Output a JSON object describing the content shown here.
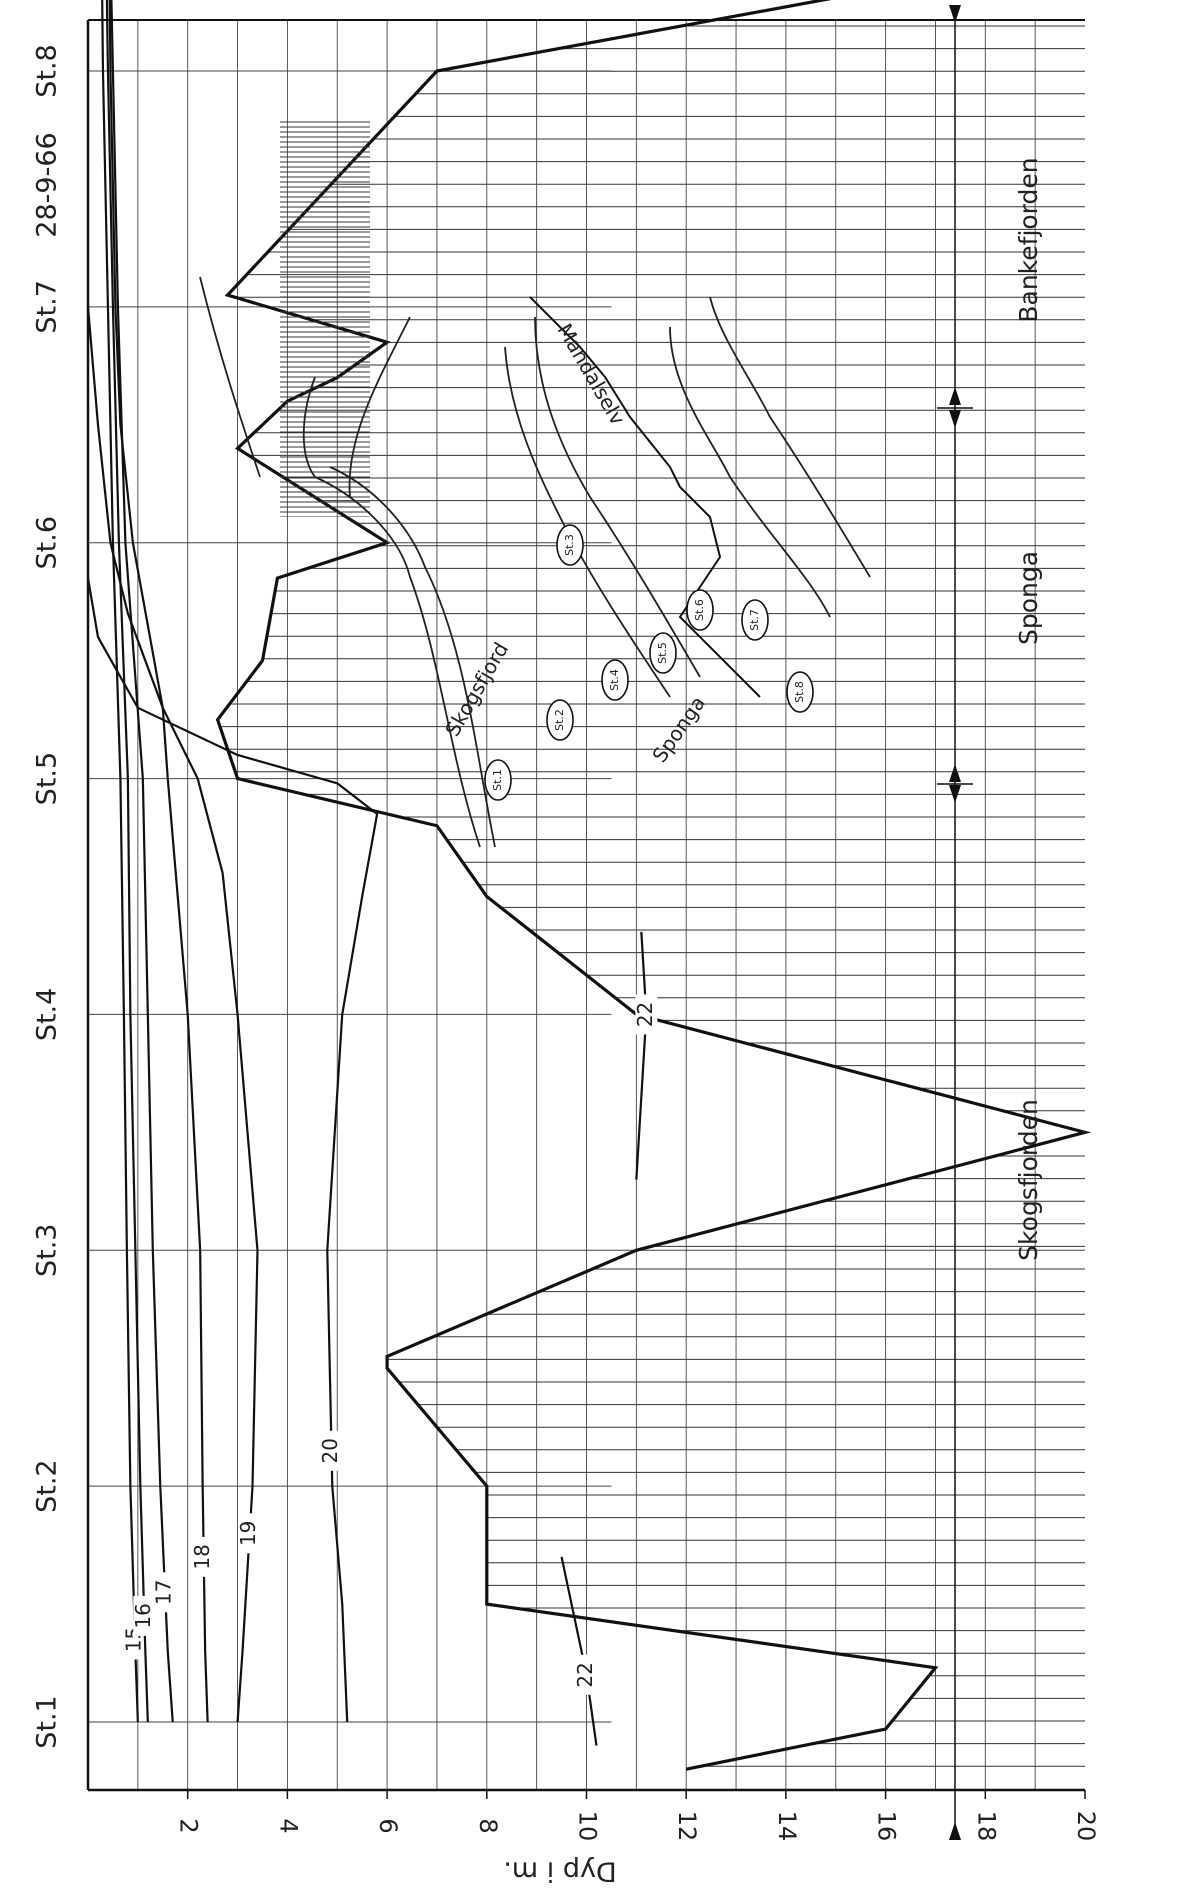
{
  "chart_data": {
    "type": "area",
    "date": "28-9-66",
    "ylabel": "Dyp i m.",
    "ylim": [
      0,
      20
    ],
    "y_ticks": [
      2,
      4,
      6,
      8,
      10,
      12,
      14,
      16,
      18,
      20
    ],
    "stations": [
      "St.1",
      "St.2",
      "St.3",
      "St.4",
      "St.5",
      "St.6",
      "St.7",
      "St.8"
    ],
    "regions": [
      {
        "name": "Skogsfjorden",
        "from": "St.1",
        "to": "St.4"
      },
      {
        "name": "Sponga",
        "from": "St.4",
        "to": "St.6"
      },
      {
        "name": "Bankefjorden",
        "from": "St.6",
        "to": "St.8"
      }
    ],
    "bottom_profile": {
      "distance": [
        -0.2,
        -0.03,
        0.23,
        0.5,
        1.0,
        1.5,
        1.55,
        2.0,
        2.5,
        3.0,
        3.5,
        3.8,
        4.0,
        4.25,
        4.5,
        4.85,
        5.0,
        5.4,
        5.6,
        5.7,
        5.85,
        6.05,
        7.0,
        7.35,
        7.55,
        7.7,
        8.0
      ],
      "depth": [
        12,
        16,
        17,
        8,
        8,
        6,
        6,
        11,
        20,
        11,
        8,
        7,
        3,
        2.6,
        3.5,
        3.8,
        6,
        3,
        4,
        5.0,
        6.0,
        2.8,
        7,
        16,
        17,
        16,
        9
      ]
    },
    "isohalines": [
      {
        "value": 15,
        "x": [
          0,
          0.3,
          1,
          2,
          3,
          4,
          5,
          6,
          7,
          8
        ],
        "depth": [
          1.0,
          0.95,
          0.85,
          0.78,
          0.72,
          0.65,
          0.5,
          0.4,
          0.3,
          0.25
        ]
      },
      {
        "value": 16,
        "x": [
          0,
          0.3,
          1,
          2,
          3,
          4,
          5,
          6,
          7,
          8
        ],
        "depth": [
          1.2,
          1.15,
          1.05,
          0.95,
          0.85,
          0.8,
          0.62,
          0.5,
          0.4,
          0.33
        ]
      },
      {
        "value": 17,
        "x": [
          0,
          0.3,
          1,
          2,
          3,
          4,
          5,
          6,
          7,
          8
        ],
        "depth": [
          1.7,
          1.6,
          1.45,
          1.3,
          1.2,
          1.1,
          0.75,
          0.6,
          0.5,
          0.4
        ]
      },
      {
        "value": 18,
        "x": [
          0,
          0.3,
          1,
          2,
          3,
          4,
          4.3,
          5,
          5.5,
          6,
          7,
          8
        ],
        "depth": [
          2.4,
          2.35,
          2.3,
          2.25,
          2.0,
          1.6,
          1.5,
          0.9,
          0.65,
          0.55,
          0.45,
          0.4
        ]
      },
      {
        "value": 19,
        "x": [
          0,
          0.3,
          1,
          2,
          3,
          3.6,
          4,
          4.3,
          4.7,
          5,
          5.5,
          6
        ],
        "depth": [
          3.0,
          3.1,
          3.3,
          3.4,
          3.0,
          2.7,
          2.2,
          1.5,
          0.8,
          0.45,
          0.2,
          0.0
        ]
      },
      {
        "value": 20,
        "x": [
          0,
          0.5,
          1,
          2,
          3,
          3.5,
          3.85,
          3.98,
          4.1,
          4.3,
          4.6,
          4.85
        ],
        "depth": [
          5.2,
          5.1,
          4.9,
          4.8,
          5.1,
          5.5,
          5.8,
          5.0,
          3.0,
          1.0,
          0.2,
          0.0
        ]
      },
      {
        "value": 22,
        "x": [
          -0.1,
          0.2,
          0.7
        ],
        "depth": [
          10.2,
          10.0,
          9.5
        ]
      },
      {
        "value": 22,
        "x": [
          2.3,
          3.0,
          3.35
        ],
        "depth": [
          11.0,
          11.2,
          11.1
        ]
      }
    ],
    "map": {
      "place_labels": [
        "Skogsfjord",
        "Sponga",
        "Mandalselv"
      ],
      "station_labels": [
        "St.1",
        "St.2",
        "St.3",
        "St.4",
        "St.5",
        "St.6",
        "St.7",
        "St.8"
      ]
    }
  }
}
